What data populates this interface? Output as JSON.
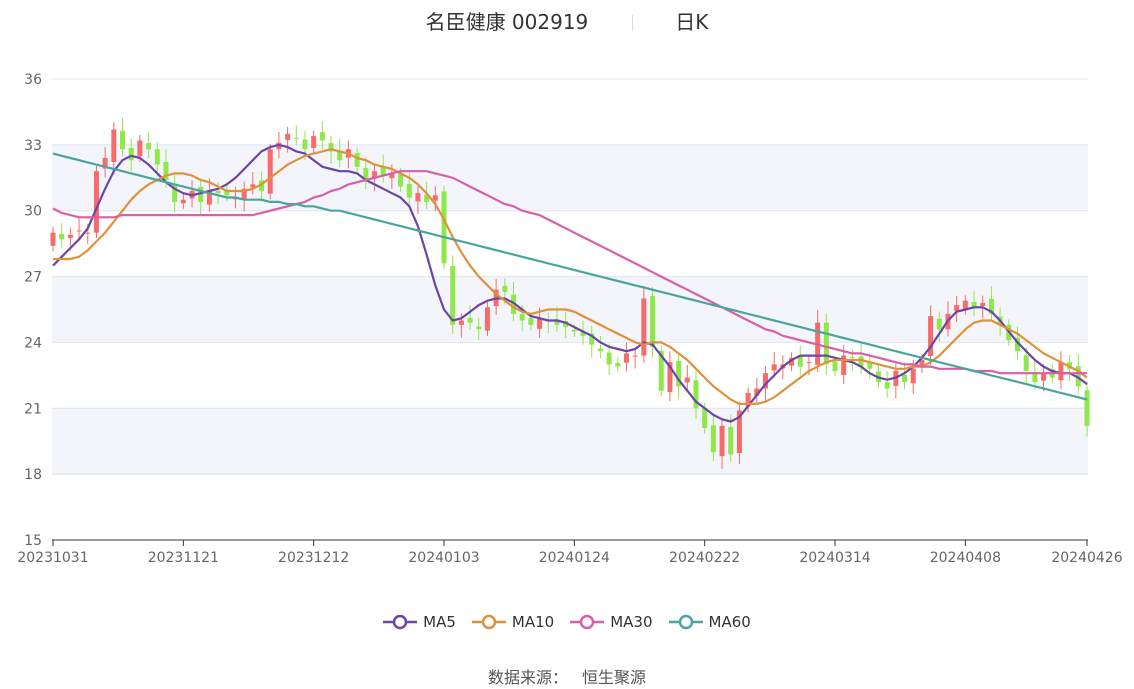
{
  "header": {
    "stock": "名臣健康 002919",
    "period": "日K"
  },
  "source": {
    "label": "数据来源：",
    "provider": "恒生聚源"
  },
  "colors": {
    "up": "#f76b6b",
    "down": "#8fe84a",
    "grid_band": "#f3f5fb",
    "grid_line": "#e0e4f0",
    "MA5": "#6c45a8",
    "MA10": "#e0913c",
    "MA30": "#d95fa8",
    "MA60": "#4aa59e"
  },
  "legend": [
    "MA5",
    "MA10",
    "MA30",
    "MA60"
  ],
  "chart_data": {
    "type": "candlestick",
    "title": "名臣健康 002919",
    "subtitle": "日K",
    "ylim": [
      15,
      36
    ],
    "y_ticks": [
      15,
      18,
      21,
      24,
      27,
      30,
      33,
      36
    ],
    "x_tick_labels": [
      "20231031",
      "20231121",
      "20231212",
      "20240103",
      "20240124",
      "20240222",
      "20240314",
      "20240408",
      "20240426"
    ],
    "x_tick_index": [
      0,
      15,
      30,
      45,
      60,
      75,
      90,
      105,
      119
    ],
    "count": 120,
    "closes": [
      29.0,
      28.7,
      28.9,
      29.1,
      29.0,
      31.8,
      32.4,
      33.7,
      32.8,
      32.3,
      33.2,
      32.8,
      32.1,
      31.4,
      30.4,
      30.5,
      30.9,
      30.4,
      30.9,
      30.8,
      30.7,
      30.6,
      31.0,
      31.2,
      30.9,
      32.8,
      33.1,
      33.5,
      33.3,
      32.8,
      33.4,
      33.2,
      32.7,
      32.3,
      32.8,
      32.0,
      31.4,
      31.8,
      31.6,
      31.7,
      31.1,
      30.6,
      30.8,
      30.4,
      30.7,
      27.6,
      24.8,
      25.0,
      24.9,
      24.6,
      25.6,
      26.4,
      26.3,
      25.3,
      25.0,
      24.8,
      25.1,
      25.0,
      24.8,
      24.7,
      24.5,
      24.3,
      23.9,
      23.6,
      23.0,
      22.9,
      23.5,
      23.4,
      26.0,
      23.8,
      21.8,
      23.1,
      22.0,
      22.4,
      21.0,
      20.1,
      19.0,
      20.2,
      18.9,
      20.9,
      21.7,
      21.9,
      22.6,
      23.0,
      23.0,
      23.3,
      22.9,
      23.1,
      24.9,
      23.0,
      22.7,
      23.4,
      23.3,
      22.9,
      22.8,
      22.2,
      21.9,
      22.7,
      22.2,
      22.8,
      23.2,
      25.2,
      24.6,
      25.3,
      25.7,
      25.9,
      25.6,
      25.8,
      25.3,
      24.8,
      24.1,
      23.6,
      22.7,
      22.2,
      22.6,
      22.4,
      23.1,
      22.8,
      22.0,
      20.2
    ],
    "series": [
      {
        "name": "MA5",
        "values": [
          27.5,
          27.9,
          28.3,
          28.7,
          29.2,
          30.1,
          31.0,
          31.8,
          32.3,
          32.5,
          32.4,
          32.1,
          31.7,
          31.3,
          31.0,
          30.8,
          30.7,
          30.8,
          30.9,
          31.0,
          31.2,
          31.5,
          31.9,
          32.3,
          32.7,
          32.9,
          33.0,
          32.9,
          32.7,
          32.6,
          32.3,
          32.0,
          31.9,
          31.8,
          31.8,
          31.7,
          31.4,
          31.2,
          31.0,
          30.8,
          30.6,
          30.2,
          29.3,
          28.0,
          26.6,
          25.5,
          25.0,
          25.1,
          25.4,
          25.7,
          25.9,
          26.0,
          26.0,
          25.8,
          25.5,
          25.2,
          25.1,
          25.0,
          25.0,
          24.9,
          24.7,
          24.5,
          24.3,
          24.0,
          23.8,
          23.7,
          23.6,
          23.7,
          24.0,
          23.9,
          23.4,
          22.9,
          22.3,
          21.8,
          21.3,
          21.0,
          20.7,
          20.5,
          20.4,
          20.6,
          21.1,
          21.6,
          22.1,
          22.5,
          22.9,
          23.2,
          23.4,
          23.4,
          23.4,
          23.4,
          23.3,
          23.2,
          23.1,
          22.9,
          22.6,
          22.4,
          22.3,
          22.4,
          22.6,
          22.9,
          23.3,
          23.8,
          24.4,
          25.0,
          25.4,
          25.5,
          25.6,
          25.6,
          25.4,
          25.0,
          24.5,
          24.0,
          23.6,
          23.2,
          22.9,
          22.7,
          22.6,
          22.6,
          22.4,
          22.1
        ]
      },
      {
        "name": "MA10",
        "values": [
          27.8,
          27.8,
          27.8,
          27.9,
          28.2,
          28.6,
          29.0,
          29.5,
          30.0,
          30.5,
          30.9,
          31.2,
          31.4,
          31.6,
          31.7,
          31.7,
          31.6,
          31.4,
          31.3,
          31.1,
          30.9,
          30.9,
          30.9,
          31.0,
          31.2,
          31.5,
          31.8,
          32.1,
          32.3,
          32.5,
          32.6,
          32.7,
          32.8,
          32.7,
          32.6,
          32.4,
          32.3,
          32.1,
          32.0,
          31.9,
          31.7,
          31.5,
          31.2,
          30.8,
          30.3,
          29.6,
          28.8,
          28.1,
          27.5,
          27.0,
          26.6,
          26.2,
          25.9,
          25.6,
          25.4,
          25.3,
          25.4,
          25.5,
          25.5,
          25.5,
          25.4,
          25.2,
          25.0,
          24.8,
          24.6,
          24.4,
          24.2,
          24.0,
          23.9,
          24.0,
          24.0,
          23.8,
          23.5,
          23.2,
          22.8,
          22.4,
          22.0,
          21.7,
          21.4,
          21.2,
          21.2,
          21.2,
          21.3,
          21.5,
          21.8,
          22.1,
          22.4,
          22.7,
          22.9,
          23.1,
          23.2,
          23.2,
          23.2,
          23.2,
          23.1,
          23.0,
          22.9,
          22.8,
          22.8,
          22.9,
          22.9,
          23.1,
          23.4,
          23.8,
          24.2,
          24.6,
          24.9,
          25.0,
          25.0,
          24.8,
          24.6,
          24.4,
          24.1,
          23.8,
          23.5,
          23.3,
          23.1,
          22.9,
          22.7,
          22.4
        ]
      },
      {
        "name": "MA30",
        "values": [
          30.1,
          29.9,
          29.8,
          29.7,
          29.7,
          29.7,
          29.7,
          29.7,
          29.8,
          29.8,
          29.8,
          29.8,
          29.8,
          29.8,
          29.8,
          29.8,
          29.8,
          29.8,
          29.8,
          29.8,
          29.8,
          29.8,
          29.8,
          29.8,
          29.9,
          30.0,
          30.1,
          30.2,
          30.3,
          30.4,
          30.6,
          30.7,
          30.9,
          31.0,
          31.2,
          31.3,
          31.4,
          31.5,
          31.6,
          31.7,
          31.8,
          31.8,
          31.8,
          31.8,
          31.7,
          31.6,
          31.5,
          31.3,
          31.1,
          30.9,
          30.7,
          30.5,
          30.3,
          30.2,
          30.0,
          29.9,
          29.8,
          29.6,
          29.4,
          29.2,
          29.0,
          28.8,
          28.6,
          28.4,
          28.2,
          28.0,
          27.8,
          27.6,
          27.4,
          27.2,
          27.0,
          26.8,
          26.6,
          26.4,
          26.2,
          26.0,
          25.8,
          25.6,
          25.4,
          25.2,
          25.0,
          24.8,
          24.6,
          24.5,
          24.3,
          24.2,
          24.1,
          24.0,
          23.9,
          23.8,
          23.7,
          23.6,
          23.5,
          23.5,
          23.4,
          23.3,
          23.2,
          23.1,
          23.0,
          23.0,
          22.9,
          22.9,
          22.8,
          22.8,
          22.8,
          22.8,
          22.7,
          22.7,
          22.7,
          22.6,
          22.6,
          22.6,
          22.6,
          22.6,
          22.6,
          22.6,
          22.6,
          22.6,
          22.6,
          22.6
        ]
      },
      {
        "name": "MA60",
        "values": [
          32.6,
          32.5,
          32.4,
          32.3,
          32.2,
          32.1,
          32.0,
          31.9,
          31.8,
          31.7,
          31.6,
          31.5,
          31.4,
          31.3,
          31.2,
          31.1,
          31.0,
          30.9,
          30.8,
          30.7,
          30.6,
          30.6,
          30.5,
          30.5,
          30.5,
          30.4,
          30.4,
          30.3,
          30.3,
          30.2,
          30.2,
          30.1,
          30.0,
          30.0,
          29.9,
          29.8,
          29.7,
          29.6,
          29.5,
          29.4,
          29.3,
          29.2,
          29.1,
          29.0,
          28.9,
          28.8,
          28.7,
          28.6,
          28.5,
          28.4,
          28.3,
          28.2,
          28.1,
          28.0,
          27.9,
          27.8,
          27.7,
          27.6,
          27.5,
          27.4,
          27.3,
          27.2,
          27.1,
          27.0,
          26.9,
          26.8,
          26.7,
          26.6,
          26.5,
          26.4,
          26.3,
          26.2,
          26.1,
          26.0,
          25.9,
          25.8,
          25.7,
          25.6,
          25.5,
          25.4,
          25.3,
          25.2,
          25.1,
          25.0,
          24.9,
          24.8,
          24.7,
          24.6,
          24.5,
          24.4,
          24.3,
          24.2,
          24.1,
          24.0,
          23.9,
          23.8,
          23.7,
          23.6,
          23.5,
          23.4,
          23.3,
          23.2,
          23.1,
          23.0,
          22.9,
          22.8,
          22.7,
          22.6,
          22.5,
          22.4,
          22.3,
          22.2,
          22.1,
          22.0,
          21.9,
          21.8,
          21.7,
          21.6,
          21.5,
          21.4
        ]
      }
    ]
  }
}
